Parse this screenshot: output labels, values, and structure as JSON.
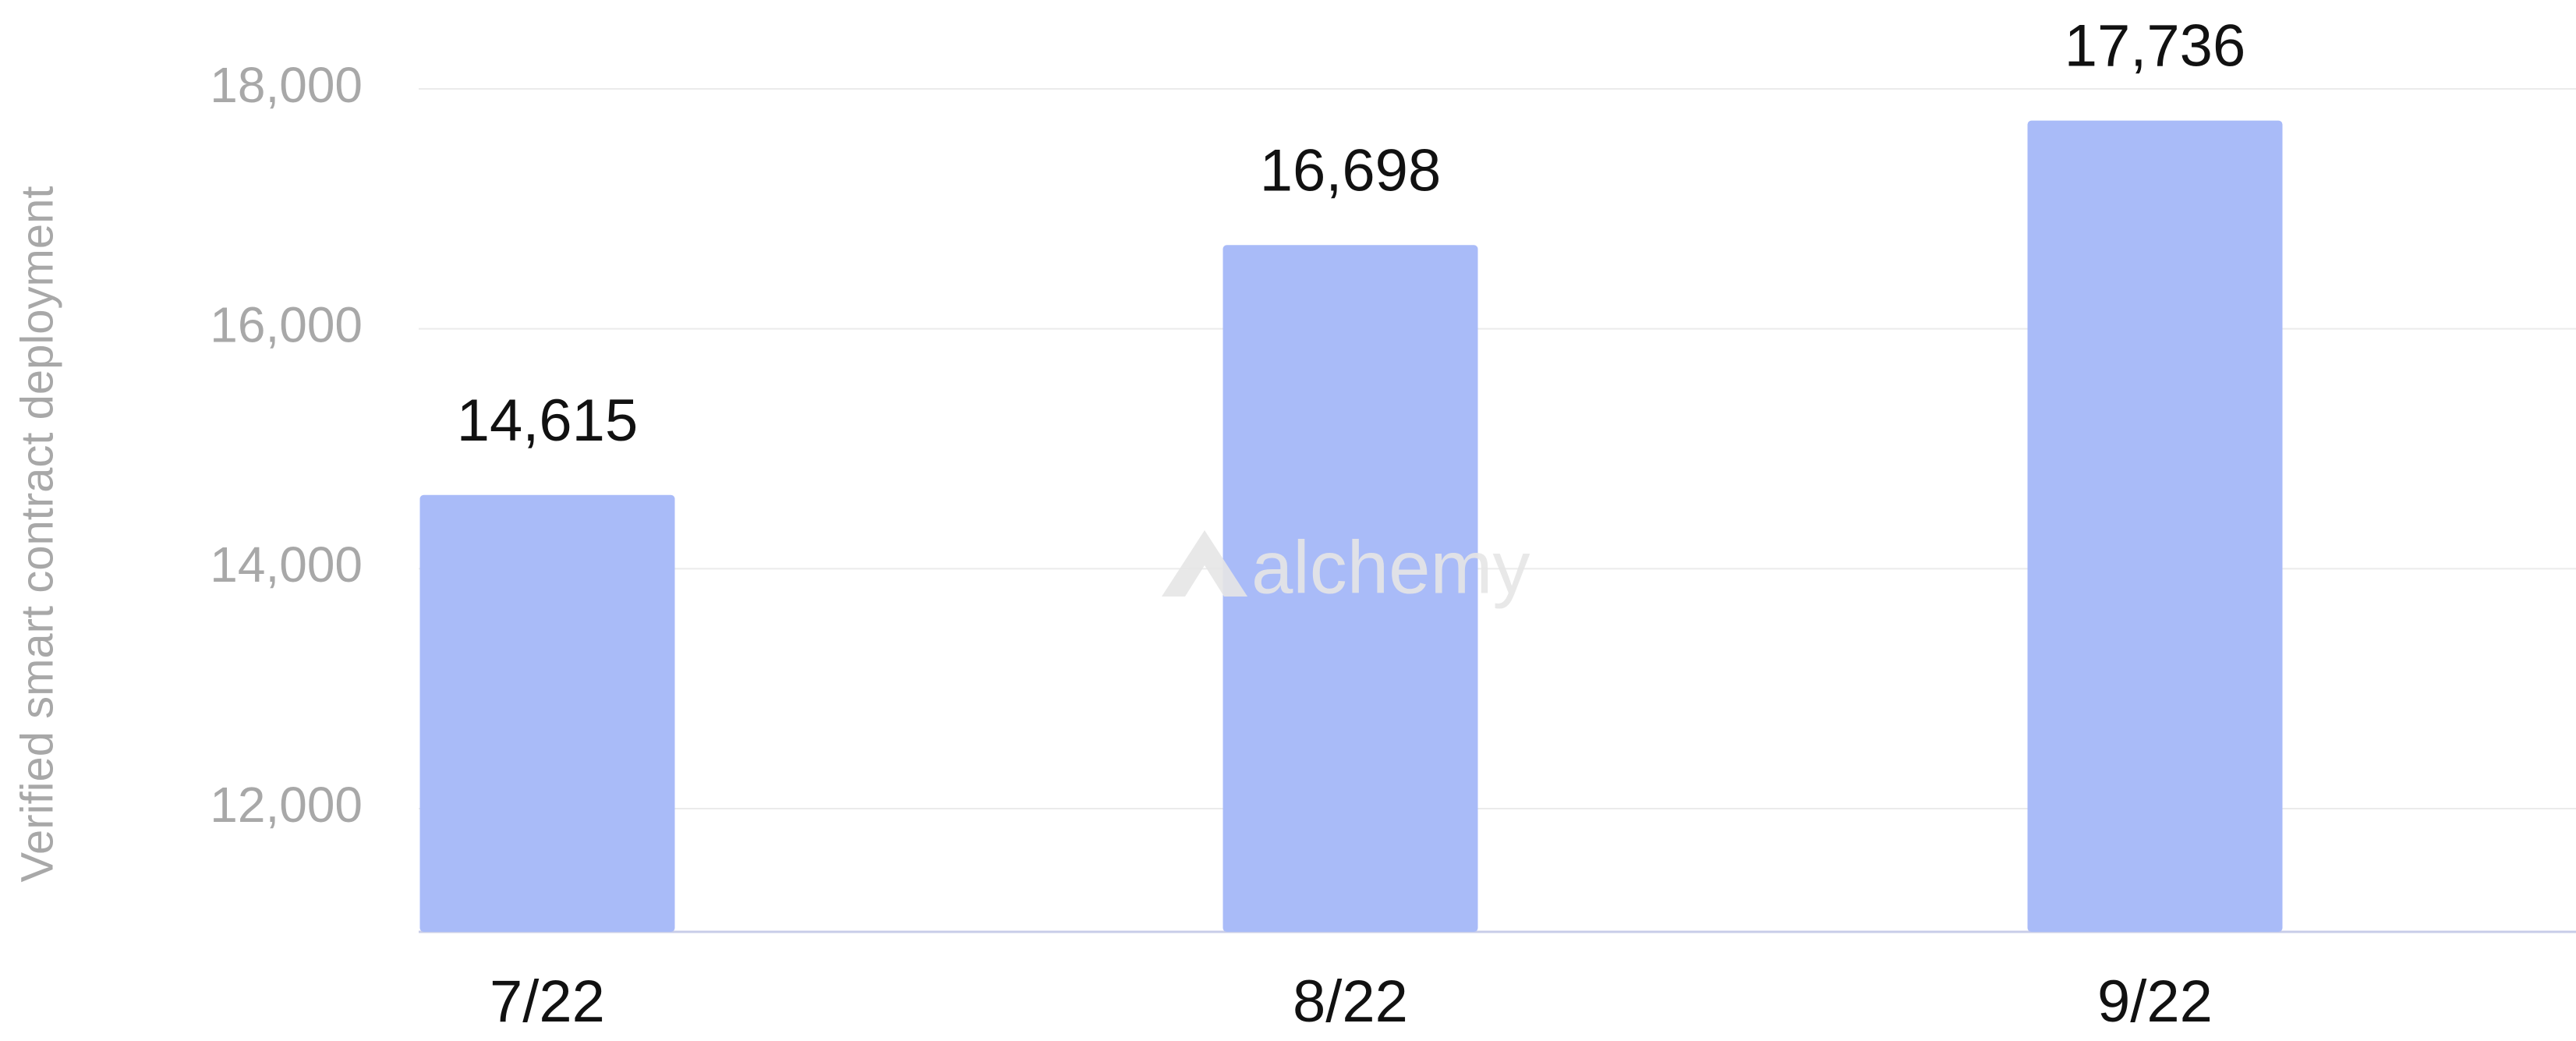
{
  "chart_data": {
    "type": "bar",
    "y_label": "Verified smart contract deployment",
    "watermark": "alchemy",
    "categories": [
      "7/22",
      "8/22",
      "9/22"
    ],
    "values": [
      14615,
      16698,
      17736
    ],
    "value_labels": [
      "14,615",
      "16,698",
      "17,736"
    ],
    "color": "#a9bbf8",
    "ylim": [
      10973,
      18741
    ],
    "yticks": [
      {
        "value": 12000,
        "label": "12,000"
      },
      {
        "value": 14000,
        "label": "14,000"
      },
      {
        "value": 16000,
        "label": "16,000"
      },
      {
        "value": 18000,
        "label": "18,000"
      }
    ],
    "grid": true
  }
}
